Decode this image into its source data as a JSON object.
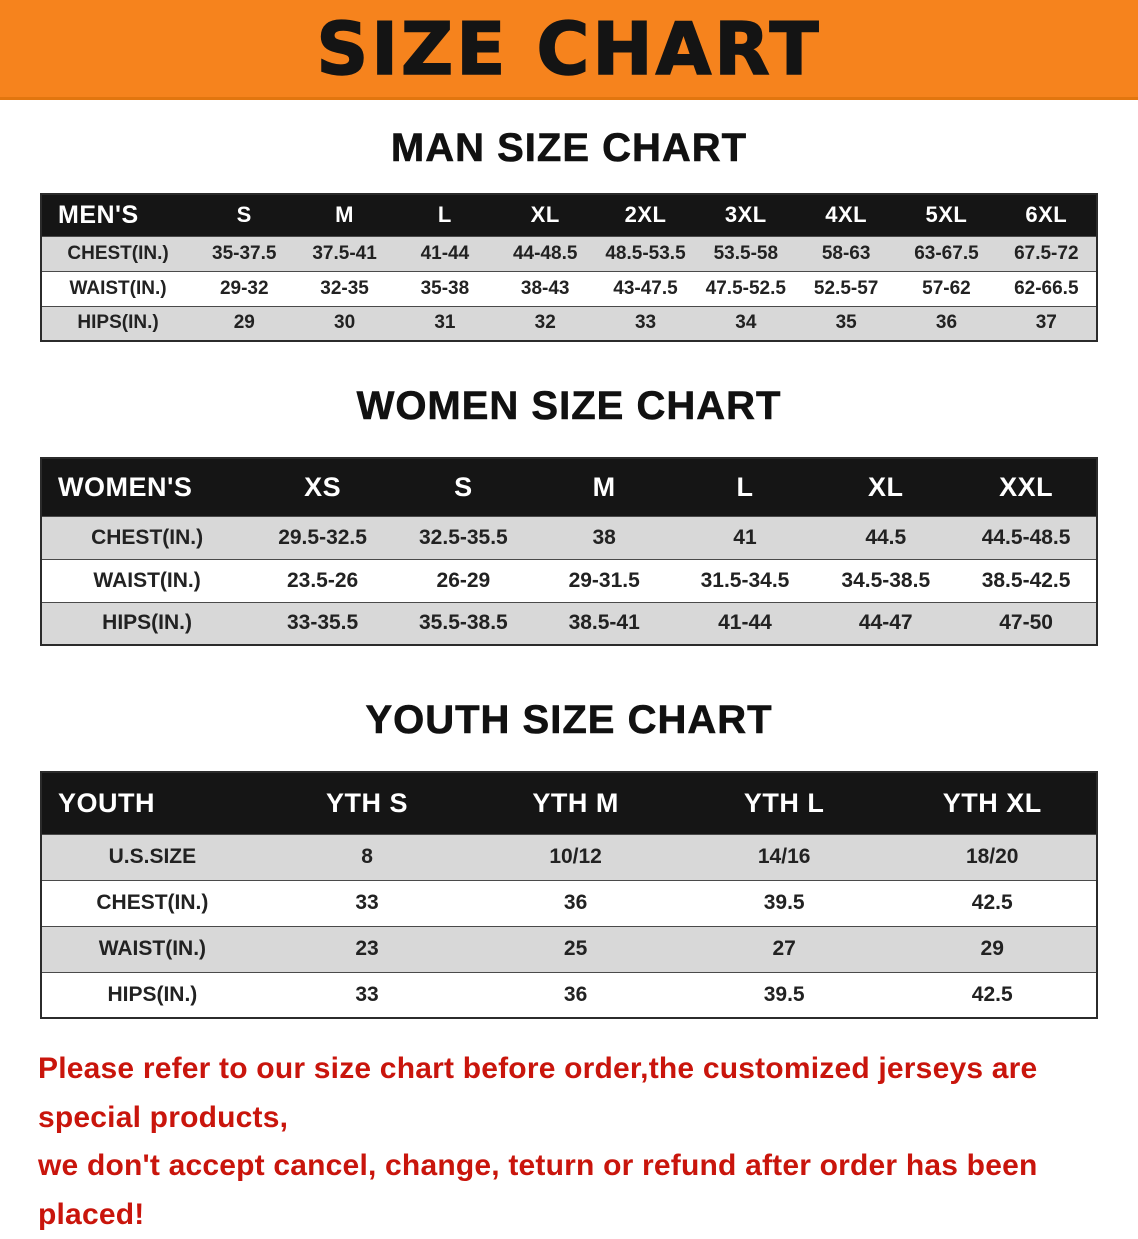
{
  "banner": {
    "title": "SIZE CHART"
  },
  "colors": {
    "banner_bg": "#F6831D",
    "banner_text": "#141414",
    "table_header_bg": "#151515",
    "table_header_text": "#FFFFFF",
    "row_alt_bg": "#D8D8D8",
    "footer_text": "#C9150C"
  },
  "sections": [
    {
      "heading": "MAN SIZE CHART",
      "table": {
        "header": [
          "MEN'S",
          "S",
          "M",
          "L",
          "XL",
          "2XL",
          "3XL",
          "4XL",
          "5XL",
          "6XL"
        ],
        "rows": [
          [
            "CHEST(IN.)",
            "35-37.5",
            "37.5-41",
            "41-44",
            "44-48.5",
            "48.5-53.5",
            "53.5-58",
            "58-63",
            "63-67.5",
            "67.5-72"
          ],
          [
            "WAIST(IN.)",
            "29-32",
            "32-35",
            "35-38",
            "38-43",
            "43-47.5",
            "47.5-52.5",
            "52.5-57",
            "57-62",
            "62-66.5"
          ],
          [
            "HIPS(IN.)",
            "29",
            "30",
            "31",
            "32",
            "33",
            "34",
            "35",
            "36",
            "37"
          ]
        ]
      }
    },
    {
      "heading": "WOMEN SIZE CHART",
      "table": {
        "header": [
          "WOMEN'S",
          "XS",
          "S",
          "M",
          "L",
          "XL",
          "XXL"
        ],
        "rows": [
          [
            "CHEST(IN.)",
            "29.5-32.5",
            "32.5-35.5",
            "38",
            "41",
            "44.5",
            "44.5-48.5"
          ],
          [
            "WAIST(IN.)",
            "23.5-26",
            "26-29",
            "29-31.5",
            "31.5-34.5",
            "34.5-38.5",
            "38.5-42.5"
          ],
          [
            "HIPS(IN.)",
            "33-35.5",
            "35.5-38.5",
            "38.5-41",
            "41-44",
            "44-47",
            "47-50"
          ]
        ]
      }
    },
    {
      "heading": "YOUTH SIZE CHART",
      "table": {
        "header": [
          "YOUTH",
          "YTH S",
          "YTH M",
          "YTH L",
          "YTH XL"
        ],
        "rows": [
          [
            "U.S.SIZE",
            "8",
            "10/12",
            "14/16",
            "18/20"
          ],
          [
            "CHEST(IN.)",
            "33",
            "36",
            "39.5",
            "42.5"
          ],
          [
            "WAIST(IN.)",
            "23",
            "25",
            "27",
            "29"
          ],
          [
            "HIPS(IN.)",
            "33",
            "36",
            "39.5",
            "42.5"
          ]
        ]
      }
    }
  ],
  "footer": {
    "lines": [
      "Please refer to our size chart before order,the customized jerseys are special products,",
      "we don't accept cancel, change, teturn or refund after order has been placed!"
    ]
  }
}
